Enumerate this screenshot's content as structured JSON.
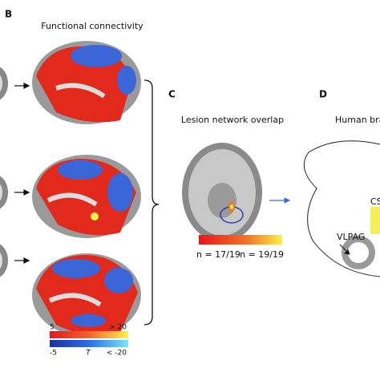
{
  "panel_b": {
    "letter": "B",
    "title": "Functional connectivity",
    "colorbar": {
      "pos_min": "5",
      "pos_max": "> 20",
      "neg_min": "-5",
      "stat": "T",
      "neg_max": "< -20"
    }
  },
  "panel_c": {
    "letter": "C",
    "title": "Lesion network overlap",
    "low_label": "n = 17/19",
    "high_label": "n = 19/19"
  },
  "panel_d": {
    "letter": "D",
    "title": "Human bra",
    "label_cs": "CS",
    "label_vlpag": "VLPAG"
  }
}
